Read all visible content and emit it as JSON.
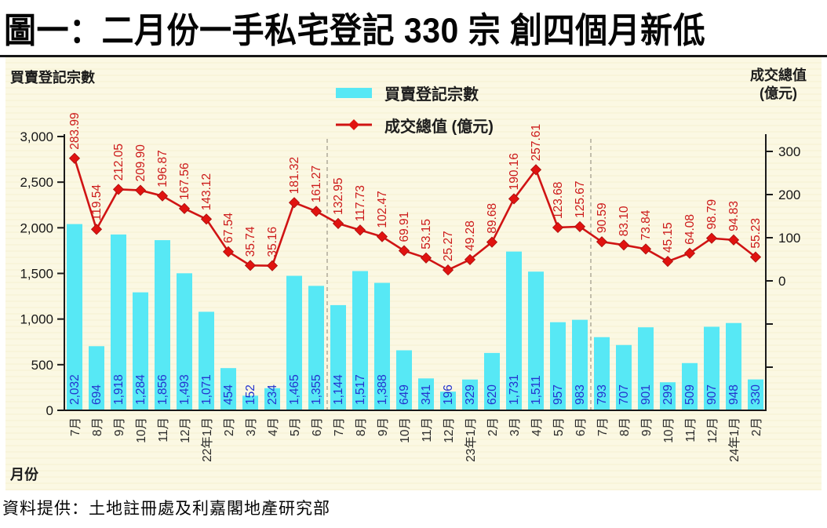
{
  "title": "圖一：二月份一手私宅登記 330 宗 創四個月新低",
  "footer": "資料提供：土地註冊處及利嘉閣地產研究部",
  "panel": {
    "left_axis_title": "買賣登記宗數",
    "right_axis_title_line1": "成交總值",
    "right_axis_title_line2": "(億元)",
    "x_axis_title": "月份"
  },
  "legend": {
    "bar_label": "買賣登記宗數",
    "line_label": "成交總值 (億元)"
  },
  "colors": {
    "bar_fill": "#57e8f5",
    "line_stroke": "#d01414",
    "marker_fill": "#e01310",
    "bar_value_text": "#2433cf",
    "line_value_text": "#cc1a1a",
    "axis_stroke": "#1a1a1a",
    "tick_text": "#161616",
    "month_text": "#2a2a2a",
    "separator": "#b4af9e",
    "panel_bg": "#fbf8e3"
  },
  "chart_data": {
    "type": "bar+line combo",
    "title": "圖一：二月份一手私宅登記 330 宗 創四個月新低",
    "xlabel": "月份",
    "ylabel_left": "買賣登記宗數",
    "ylabel_right": "成交總值 (億元)",
    "legend_position": "top-center",
    "grid": false,
    "categories": [
      "7月",
      "8月",
      "9月",
      "10月",
      "11月",
      "12月",
      "22年1月",
      "2月",
      "3月",
      "4月",
      "5月",
      "6月",
      "7月",
      "8月",
      "9月",
      "10月",
      "11月",
      "12月",
      "23年1月",
      "2月",
      "3月",
      "4月",
      "5月",
      "6月",
      "7月",
      "8月",
      "9月",
      "10月",
      "11月",
      "12月",
      "24年1月",
      "2月"
    ],
    "series": [
      {
        "name": "買賣登記宗數",
        "type": "bar",
        "axis": "left",
        "values": [
          2032,
          694,
          1918,
          1284,
          1856,
          1493,
          1071,
          454,
          152,
          234,
          1465,
          1355,
          1144,
          1517,
          1388,
          649,
          341,
          196,
          329,
          620,
          1731,
          1511,
          957,
          983,
          793,
          707,
          901,
          299,
          509,
          907,
          948,
          330
        ]
      },
      {
        "name": "成交總值 (億元)",
        "type": "line",
        "axis": "right",
        "values": [
          283.99,
          119.54,
          212.05,
          209.9,
          196.87,
          167.56,
          143.12,
          67.54,
          35.74,
          35.16,
          181.32,
          161.27,
          132.95,
          117.73,
          102.47,
          69.91,
          53.15,
          25.27,
          49.28,
          89.68,
          190.16,
          257.61,
          123.68,
          125.67,
          90.59,
          83.1,
          73.84,
          45.15,
          64.08,
          98.79,
          94.83,
          55.23
        ]
      }
    ],
    "left_axis": {
      "range": [
        0,
        3000
      ],
      "tick_values": [
        3000,
        2500,
        2000,
        1500,
        1000,
        500,
        0
      ],
      "tick_labels": [
        "3,000",
        "2,500",
        "2,000",
        "1,500",
        "1,000",
        "500",
        "0"
      ]
    },
    "right_axis": {
      "labeled_ticks": [
        300,
        200,
        100,
        0
      ],
      "tick_values": [
        300,
        200,
        100,
        0,
        -100,
        -200
      ],
      "tick_labels": [
        "300",
        "200",
        "100",
        "0",
        "",
        ""
      ]
    },
    "year_separators_after_index": [
      11,
      23
    ]
  }
}
